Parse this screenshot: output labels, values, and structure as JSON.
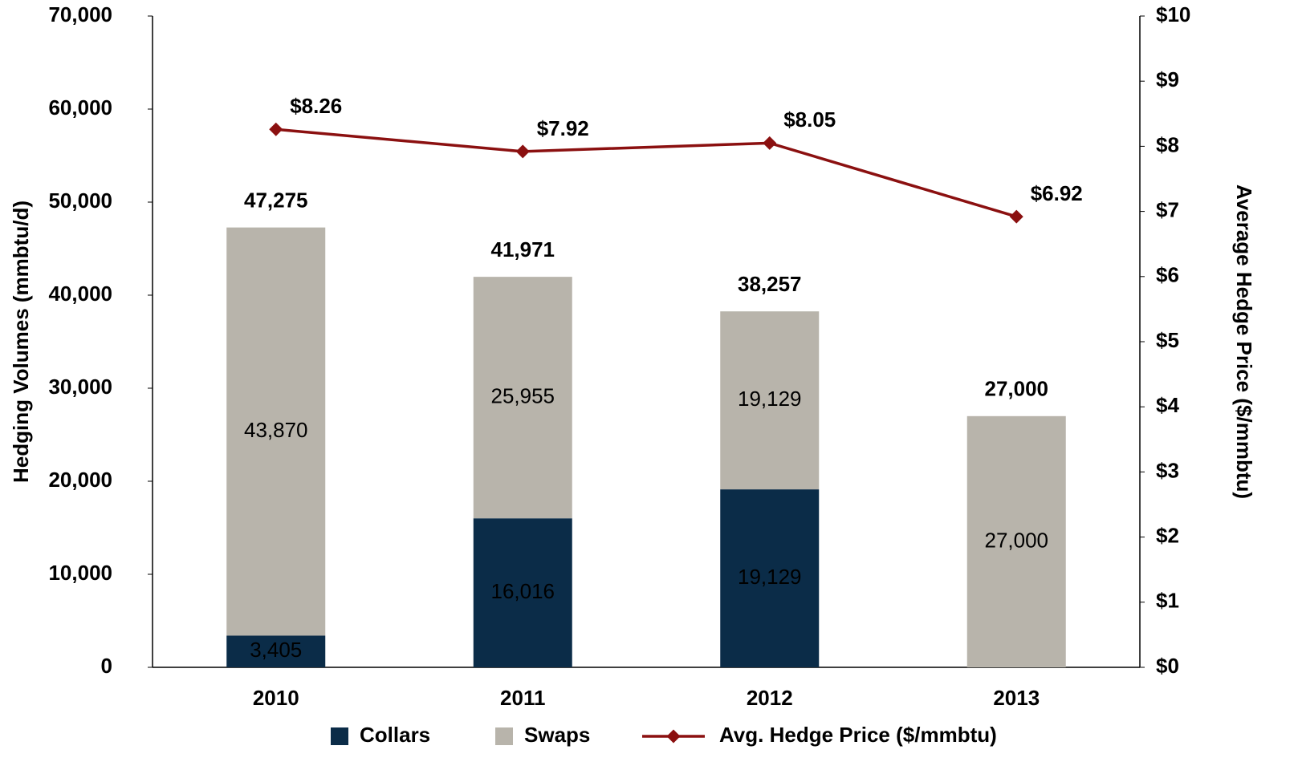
{
  "chart_data": {
    "type": "bar",
    "categories": [
      "2010",
      "2011",
      "2012",
      "2013"
    ],
    "series": [
      {
        "name": "Collars",
        "color": "#0b2c48",
        "values": [
          3405,
          16016,
          19129,
          null
        ],
        "value_labels": [
          "3,405",
          "16,016",
          "19,129",
          null
        ],
        "label_color": "#ffffff"
      },
      {
        "name": "Swaps",
        "color": "#b8b4ab",
        "values": [
          43870,
          25955,
          19129,
          27000
        ],
        "value_labels": [
          "43,870",
          "25,955",
          "19,129",
          "27,000"
        ],
        "label_color": "#000000"
      },
      {
        "name": "Avg. Hedge Price ($/mmbtu)",
        "type": "line",
        "axis": "y2",
        "color": "#8b1010",
        "values": [
          8.26,
          7.92,
          8.05,
          6.92
        ],
        "value_labels": [
          "$8.26",
          "$7.92",
          "$8.05",
          "$6.92"
        ]
      }
    ],
    "totals": [
      47275,
      41971,
      38257,
      27000
    ],
    "total_labels": [
      "47,275",
      "41,971",
      "38,257",
      "27,000"
    ],
    "ylabel": "Hedging Volumes (mmbtu/d)",
    "y2label": "Average Hedge Price ($/mmbtu)",
    "ylim": [
      0,
      70000
    ],
    "yticks": [
      0,
      {
        "value": 10000,
        "label": "10,000"
      },
      {
        "value": 20000,
        "label": "20,000"
      },
      {
        "value": 30000,
        "label": "30,000"
      },
      {
        "value": 40000,
        "label": "40,000"
      },
      {
        "value": 50000,
        "label": "50,000"
      },
      {
        "value": 60000,
        "label": "60,000"
      },
      {
        "value": 70000,
        "label": "70,000"
      }
    ],
    "y2lim": [
      0,
      10
    ],
    "y2ticks": [
      {
        "value": 0,
        "label": "$0"
      },
      {
        "value": 1,
        "label": "$1"
      },
      {
        "value": 2,
        "label": "$2"
      },
      {
        "value": 3,
        "label": "$3"
      },
      {
        "value": 4,
        "label": "$4"
      },
      {
        "value": 5,
        "label": "$5"
      },
      {
        "value": 6,
        "label": "$6"
      },
      {
        "value": 7,
        "label": "$7"
      },
      {
        "value": 8,
        "label": "$8"
      },
      {
        "value": 9,
        "label": "$9"
      },
      {
        "value": 10,
        "label": "$10"
      }
    ],
    "legend": "bottom"
  }
}
